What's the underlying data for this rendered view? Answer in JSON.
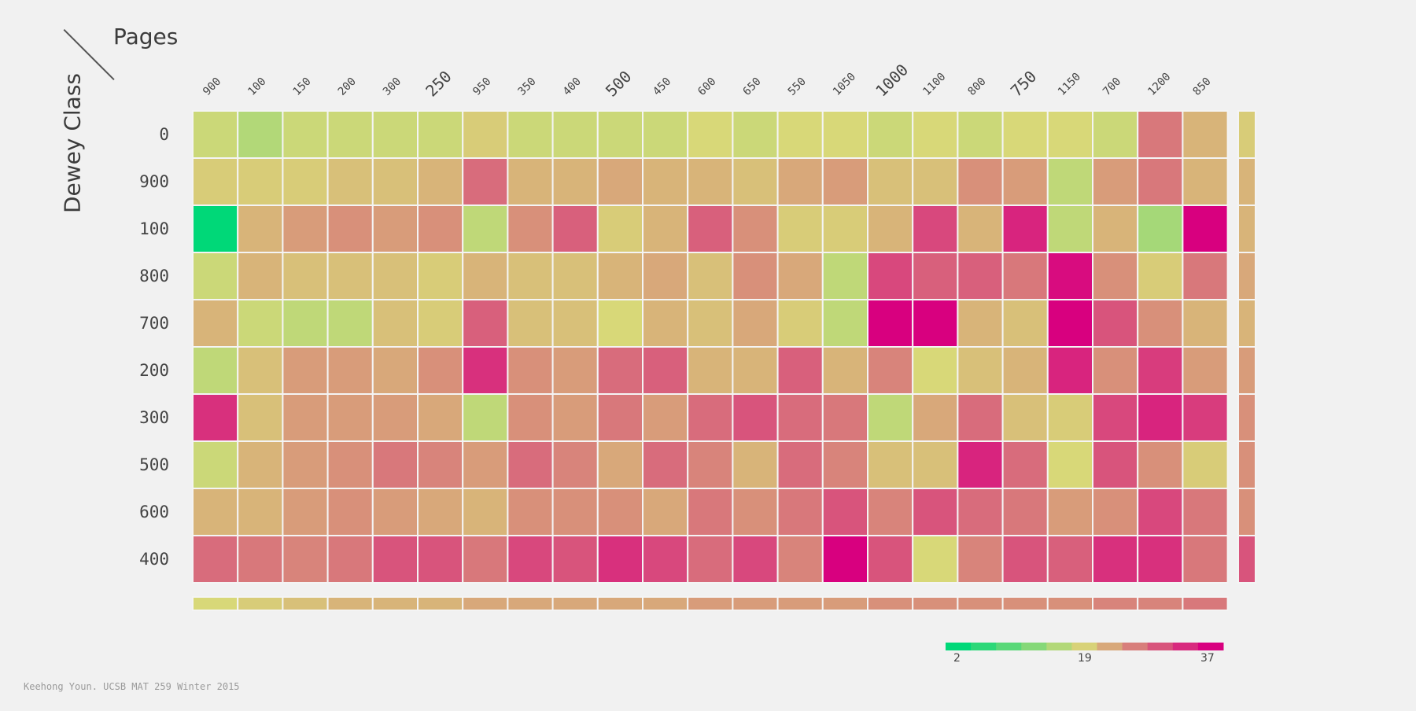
{
  "chart_data": {
    "type": "heatmap",
    "xlabel": "Pages",
    "ylabel": "Dewey Class",
    "x_categories": [
      "900",
      "100",
      "150",
      "200",
      "300",
      "250",
      "950",
      "350",
      "400",
      "500",
      "450",
      "600",
      "650",
      "550",
      "1050",
      "1000",
      "1100",
      "800",
      "750",
      "1150",
      "700",
      "1200",
      "850"
    ],
    "emphasized_x": [
      "250",
      "500",
      "1000",
      "750"
    ],
    "y_categories": [
      "0",
      "900",
      "100",
      "800",
      "700",
      "200",
      "300",
      "500",
      "600",
      "400"
    ],
    "values": [
      [
        18,
        16,
        18,
        18,
        18,
        18,
        20,
        18,
        18,
        18,
        18,
        19,
        18,
        19,
        19,
        18,
        19,
        18,
        19,
        19,
        18,
        27,
        22
      ],
      [
        20,
        20,
        20,
        21,
        21,
        22,
        28,
        22,
        22,
        23,
        22,
        22,
        21,
        23,
        24,
        21,
        21,
        25,
        24,
        17,
        24,
        27,
        22
      ],
      [
        2,
        22,
        24,
        25,
        24,
        25,
        17,
        25,
        29,
        20,
        22,
        29,
        25,
        20,
        20,
        22,
        31,
        22,
        34,
        17,
        22,
        15,
        37
      ],
      [
        18,
        22,
        21,
        21,
        21,
        20,
        22,
        21,
        21,
        22,
        23,
        21,
        25,
        23,
        17,
        31,
        29,
        29,
        27,
        36,
        25,
        20,
        27
      ],
      [
        22,
        18,
        17,
        17,
        21,
        20,
        29,
        21,
        21,
        19,
        22,
        21,
        23,
        20,
        17,
        37,
        37,
        22,
        21,
        37,
        30,
        25,
        22
      ],
      [
        17,
        21,
        24,
        24,
        23,
        25,
        33,
        25,
        24,
        28,
        29,
        22,
        22,
        29,
        22,
        26,
        19,
        21,
        22,
        34,
        25,
        32,
        24
      ],
      [
        33,
        21,
        24,
        24,
        24,
        23,
        17,
        25,
        24,
        27,
        24,
        28,
        30,
        28,
        27,
        17,
        23,
        28,
        21,
        20,
        31,
        34,
        32
      ],
      [
        18,
        22,
        24,
        25,
        27,
        26,
        24,
        28,
        26,
        23,
        28,
        26,
        22,
        28,
        26,
        21,
        21,
        34,
        28,
        19,
        30,
        25,
        20
      ],
      [
        22,
        22,
        24,
        25,
        24,
        23,
        22,
        25,
        25,
        25,
        23,
        27,
        25,
        27,
        30,
        26,
        30,
        28,
        27,
        24,
        25,
        31,
        27
      ],
      [
        28,
        27,
        26,
        27,
        30,
        30,
        27,
        31,
        30,
        33,
        31,
        28,
        31,
        26,
        37,
        30,
        19,
        26,
        30,
        29,
        33,
        33,
        27
      ]
    ],
    "column_summary": [
      19,
      20,
      21,
      22,
      22,
      22,
      23,
      23,
      23,
      23,
      23,
      24,
      24,
      24,
      24,
      25,
      25,
      25,
      25,
      25,
      26,
      26,
      27
    ],
    "row_summary": [
      20,
      22,
      22,
      23,
      22,
      24,
      25,
      25,
      25,
      30
    ],
    "color_scale": {
      "min": 2,
      "mid": 19,
      "max": 37,
      "min_color": "#00d878",
      "mid_color": "#d8d878",
      "max_color": "#d8007f"
    },
    "legend": {
      "position": "bottom-right",
      "tick_labels": [
        "2",
        "19",
        "37"
      ]
    }
  },
  "credit": "Keehong Youn. UCSB MAT 259 Winter 2015"
}
